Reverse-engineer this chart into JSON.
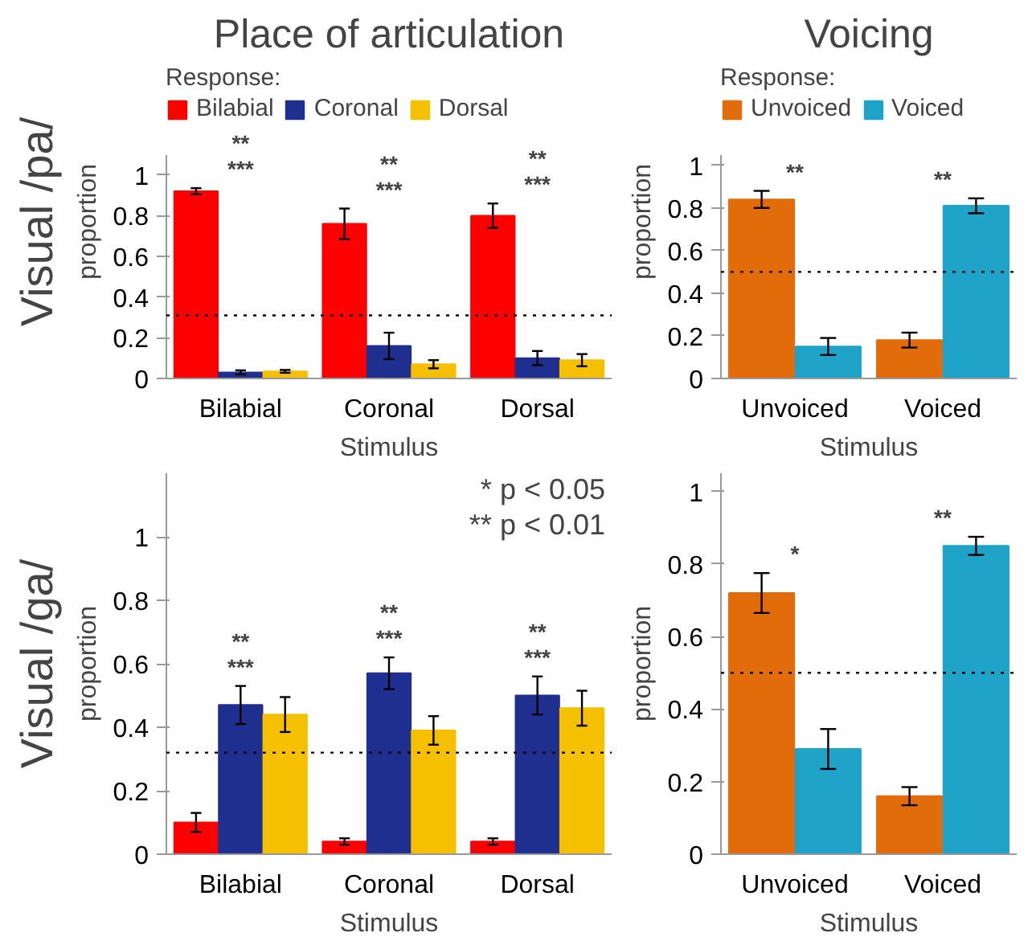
{
  "chart_data": [
    {
      "type": "bar",
      "title": "Place of articulation",
      "xlabel": "Stimulus",
      "ylabel": "proportion",
      "legend_title": "Response:",
      "legend": "top left",
      "grid": false,
      "categories": [
        "Bilabial",
        "Coronal",
        "Dorsal"
      ],
      "ylim": [
        0,
        1.1
      ],
      "yticks": [
        0,
        0.2,
        0.4,
        0.6,
        0.8,
        1
      ],
      "series": [
        {
          "name": "Bilabial",
          "color": "#ff0000",
          "values": [
            0.92,
            0.76,
            0.8
          ],
          "errors": [
            0.015,
            0.075,
            0.06
          ]
        },
        {
          "name": "Coronal",
          "color": "#1f2f8f",
          "values": [
            0.03,
            0.16,
            0.1
          ],
          "errors": [
            0.01,
            0.065,
            0.035
          ]
        },
        {
          "name": "Dorsal",
          "color": "#f5c000",
          "values": [
            0.035,
            0.07,
            0.09
          ],
          "errors": [
            0.007,
            0.02,
            0.03
          ]
        }
      ],
      "ref_lines": [
        {
          "axis": "y",
          "value": 0.31,
          "line_style": "dotted",
          "color": "#000000"
        }
      ],
      "annotations": [
        "Visual /pa/",
        "**",
        "***",
        "**",
        "***",
        "**",
        "***"
      ]
    },
    {
      "type": "bar",
      "title": "Voicing",
      "xlabel": "Stimulus",
      "ylabel": "proportion",
      "legend_title": "Response:",
      "legend": "top left",
      "grid": false,
      "categories": [
        "Unvoiced",
        "Voiced"
      ],
      "ylim": [
        0,
        1.05
      ],
      "yticks": [
        0,
        0.2,
        0.4,
        0.6,
        0.8,
        1
      ],
      "series": [
        {
          "name": "Unvoiced",
          "color": "#e36c0a",
          "values": [
            0.84,
            0.18
          ],
          "errors": [
            0.04,
            0.035
          ]
        },
        {
          "name": "Voiced",
          "color": "#1fa3c9",
          "values": [
            0.15,
            0.81
          ],
          "errors": [
            0.04,
            0.035
          ]
        }
      ],
      "ref_lines": [
        {
          "axis": "y",
          "value": 0.5,
          "line_style": "dotted",
          "color": "#000000"
        }
      ],
      "annotations": [
        "**",
        "**"
      ]
    },
    {
      "type": "bar",
      "xlabel": "Stimulus",
      "ylabel": "proportion",
      "grid": false,
      "categories": [
        "Bilabial",
        "Coronal",
        "Dorsal"
      ],
      "ylim": [
        0,
        1.2
      ],
      "yticks": [
        0,
        0.2,
        0.4,
        0.6,
        0.8,
        1
      ],
      "series": [
        {
          "color": "#ff0000",
          "values": [
            0.1,
            0.04,
            0.04
          ],
          "errors": [
            0.03,
            0.01,
            0.01
          ]
        },
        {
          "color": "#1f2f8f",
          "values": [
            0.47,
            0.57,
            0.5
          ],
          "errors": [
            0.06,
            0.05,
            0.06
          ]
        },
        {
          "color": "#f5c000",
          "values": [
            0.44,
            0.39,
            0.46
          ],
          "errors": [
            0.055,
            0.045,
            0.055
          ]
        }
      ],
      "ref_lines": [
        {
          "axis": "y",
          "value": 0.32,
          "line_style": "dotted",
          "color": "#000000"
        }
      ],
      "annotations": [
        "Visual /ga/",
        "* p < 0.05",
        "** p < 0.01",
        "**",
        "***",
        "**",
        "***",
        "**",
        "***"
      ]
    },
    {
      "type": "bar",
      "xlabel": "Stimulus",
      "ylabel": "proportion",
      "grid": false,
      "categories": [
        "Unvoiced",
        "Voiced"
      ],
      "ylim": [
        0,
        1.05
      ],
      "yticks": [
        0,
        0.2,
        0.4,
        0.6,
        0.8,
        1
      ],
      "series": [
        {
          "color": "#e36c0a",
          "values": [
            0.72,
            0.16
          ],
          "errors": [
            0.055,
            0.025
          ]
        },
        {
          "color": "#1fa3c9",
          "values": [
            0.29,
            0.85
          ],
          "errors": [
            0.055,
            0.025
          ]
        }
      ],
      "ref_lines": [
        {
          "axis": "y",
          "value": 0.5,
          "line_style": "dotted",
          "color": "#000000"
        }
      ],
      "annotations": [
        "*",
        "**"
      ]
    }
  ]
}
